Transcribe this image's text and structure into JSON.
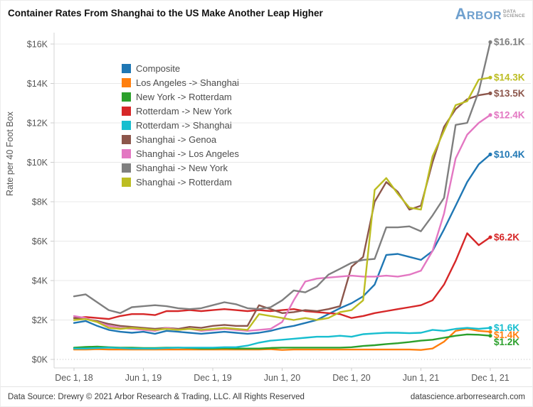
{
  "header": {
    "title": "Container Rates From Shanghai to the US Make Another Leap Higher"
  },
  "logo": {
    "name": "ARBOR",
    "sub_line1": "DATA",
    "sub_line2": "SCIENCE",
    "brand_color": "#6fa0ce"
  },
  "footer": {
    "source": "Data Source: Drewry © 2021 Arbor Research & Trading, LLC. All Rights Reserved",
    "website": "datascience.arborresearch.com"
  },
  "chart_data": {
    "type": "line",
    "title": "Container Rates From Shanghai to the US Make Another Leap Higher",
    "xlabel": "",
    "ylabel": "Rate per 40 Foot Box",
    "y_unit": "USD thousands per 40-foot container",
    "ylim": [
      0,
      16.8
    ],
    "grid": true,
    "zero_line_style": "dotted",
    "legend_position": "top-left-inside",
    "x_unit": "months since Dec 1, 2018 (monthly samples, Dec 2018 - Dec 2021)",
    "x_tick_months": [
      0,
      6,
      12,
      18,
      24,
      30,
      36
    ],
    "x_tick_labels": [
      "Dec 1, 18",
      "Jun 1, 19",
      "Dec 1, 19",
      "Jun 1, 20",
      "Dec 1, 20",
      "Jun 1, 21",
      "Dec 1, 21"
    ],
    "y_tick_values": [
      0,
      2,
      4,
      6,
      8,
      10,
      12,
      14,
      16
    ],
    "y_tick_labels": [
      "$0K",
      "$2K",
      "$4K",
      "$6K",
      "$8K",
      "$10K",
      "$12K",
      "$14K",
      "$16K"
    ],
    "series": [
      {
        "name": "Composite",
        "color": "#1f77b4",
        "end_label": "$10.4K",
        "end_value": 10.4,
        "values": [
          1.85,
          1.95,
          1.7,
          1.5,
          1.4,
          1.35,
          1.4,
          1.3,
          1.45,
          1.4,
          1.35,
          1.3,
          1.35,
          1.4,
          1.35,
          1.3,
          1.35,
          1.45,
          1.6,
          1.7,
          1.85,
          2.0,
          2.3,
          2.6,
          2.85,
          3.2,
          3.8,
          5.3,
          5.35,
          5.2,
          5.05,
          5.5,
          6.6,
          7.8,
          9.0,
          9.9,
          10.4
        ]
      },
      {
        "name": "Los Angeles -> Shanghai",
        "color": "#ff7f0e",
        "end_label": "$1.4K",
        "end_value": 1.4,
        "values": [
          0.5,
          0.5,
          0.52,
          0.5,
          0.5,
          0.5,
          0.5,
          0.5,
          0.5,
          0.5,
          0.5,
          0.5,
          0.5,
          0.5,
          0.5,
          0.5,
          0.5,
          0.52,
          0.48,
          0.5,
          0.5,
          0.5,
          0.5,
          0.5,
          0.5,
          0.5,
          0.5,
          0.5,
          0.5,
          0.5,
          0.48,
          0.55,
          0.9,
          1.45,
          1.55,
          1.45,
          1.4
        ]
      },
      {
        "name": "New York -> Rotterdam",
        "color": "#2ca02c",
        "end_label": "$1.2K",
        "end_value": 1.2,
        "values": [
          0.6,
          0.63,
          0.65,
          0.62,
          0.6,
          0.6,
          0.58,
          0.58,
          0.6,
          0.6,
          0.58,
          0.55,
          0.55,
          0.57,
          0.55,
          0.55,
          0.55,
          0.58,
          0.6,
          0.6,
          0.6,
          0.6,
          0.6,
          0.6,
          0.62,
          0.68,
          0.72,
          0.78,
          0.82,
          0.88,
          0.95,
          1.0,
          1.1,
          1.2,
          1.27,
          1.25,
          1.2
        ]
      },
      {
        "name": "Rotterdam -> New York",
        "color": "#d62728",
        "end_label": "$6.2K",
        "end_value": 6.2,
        "values": [
          2.1,
          2.15,
          2.1,
          2.05,
          2.2,
          2.3,
          2.3,
          2.25,
          2.45,
          2.45,
          2.5,
          2.45,
          2.5,
          2.55,
          2.5,
          2.45,
          2.5,
          2.45,
          2.5,
          2.55,
          2.45,
          2.4,
          2.35,
          2.3,
          2.1,
          2.2,
          2.35,
          2.45,
          2.55,
          2.65,
          2.75,
          3.0,
          3.8,
          5.0,
          6.4,
          5.8,
          6.2
        ]
      },
      {
        "name": "Rotterdam -> Shanghai",
        "color": "#17becf",
        "end_label": "$1.6K",
        "end_value": 1.6,
        "values": [
          0.55,
          0.55,
          0.58,
          0.6,
          0.58,
          0.55,
          0.55,
          0.55,
          0.58,
          0.6,
          0.6,
          0.6,
          0.6,
          0.62,
          0.62,
          0.7,
          0.85,
          0.95,
          1.0,
          1.05,
          1.1,
          1.15,
          1.15,
          1.2,
          1.15,
          1.28,
          1.32,
          1.35,
          1.35,
          1.33,
          1.35,
          1.5,
          1.45,
          1.55,
          1.6,
          1.55,
          1.6
        ]
      },
      {
        "name": "Shanghai -> Genoa",
        "color": "#8c564b",
        "end_label": "$13.5K",
        "end_value": 13.5,
        "values": [
          2.1,
          2.05,
          1.95,
          1.8,
          1.7,
          1.65,
          1.6,
          1.55,
          1.6,
          1.55,
          1.65,
          1.6,
          1.7,
          1.75,
          1.7,
          1.7,
          2.75,
          2.55,
          2.35,
          2.4,
          2.5,
          2.45,
          2.55,
          2.7,
          4.7,
          5.2,
          8.0,
          9.0,
          8.5,
          7.6,
          7.8,
          10.0,
          11.8,
          12.7,
          13.2,
          13.4,
          13.5
        ]
      },
      {
        "name": "Shanghai -> Los Angeles",
        "color": "#e377c2",
        "end_label": "$12.4K",
        "end_value": 12.4,
        "values": [
          2.2,
          2.1,
          1.9,
          1.7,
          1.6,
          1.55,
          1.5,
          1.45,
          1.6,
          1.5,
          1.55,
          1.45,
          1.5,
          1.55,
          1.5,
          1.45,
          1.5,
          1.55,
          1.9,
          3.0,
          3.95,
          4.1,
          4.15,
          4.2,
          4.25,
          4.2,
          4.2,
          4.25,
          4.2,
          4.3,
          4.5,
          5.5,
          7.4,
          10.2,
          11.4,
          12.0,
          12.4
        ]
      },
      {
        "name": "Shanghai -> New York",
        "color": "#7f7f7f",
        "end_label": "$16.1K",
        "end_value": 16.1,
        "values": [
          3.2,
          3.3,
          2.9,
          2.5,
          2.35,
          2.65,
          2.7,
          2.75,
          2.7,
          2.6,
          2.55,
          2.6,
          2.75,
          2.9,
          2.8,
          2.6,
          2.55,
          2.65,
          3.0,
          3.5,
          3.4,
          3.7,
          4.3,
          4.6,
          4.9,
          5.05,
          5.1,
          6.7,
          6.7,
          6.75,
          6.5,
          7.3,
          8.2,
          11.9,
          12.0,
          13.6,
          16.1
        ]
      },
      {
        "name": "Shanghai -> Rotterdam",
        "color": "#bcbd22",
        "end_label": "$14.3K",
        "end_value": 14.3,
        "values": [
          2.0,
          2.05,
          1.9,
          1.6,
          1.55,
          1.6,
          1.55,
          1.5,
          1.55,
          1.5,
          1.55,
          1.5,
          1.55,
          1.6,
          1.55,
          1.5,
          2.3,
          2.2,
          2.1,
          2.0,
          2.1,
          2.0,
          2.1,
          2.4,
          2.5,
          3.0,
          8.6,
          9.2,
          8.4,
          7.7,
          7.6,
          10.3,
          11.6,
          12.9,
          13.1,
          14.2,
          14.3
        ]
      }
    ]
  }
}
